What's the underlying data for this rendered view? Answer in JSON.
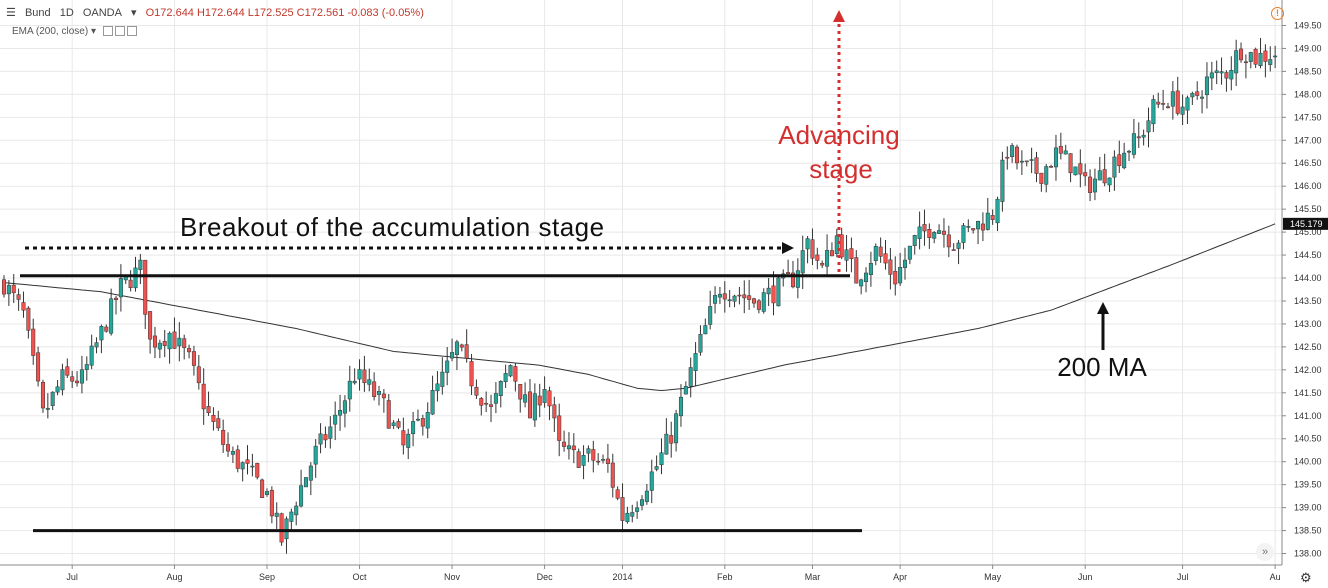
{
  "header": {
    "symbol": "Bund",
    "interval": "1D",
    "source": "OANDA",
    "ohlc": "O172.644  H172.644  L172.525  C172.561  -0.083 (-0.05%)"
  },
  "indicator_label": "EMA (200, close)",
  "colors": {
    "up": "#26a69a",
    "down": "#ef5350",
    "grid": "#e8e8e8",
    "axis": "#888888",
    "annotation_red": "#d32f2f",
    "annotation_black": "#111111"
  },
  "chart_data": {
    "type": "candlestick",
    "ylim": [
      137.75,
      149.75
    ],
    "y_ticks": [
      "149.50",
      "149.00",
      "148.50",
      "148.00",
      "147.50",
      "147.00",
      "146.50",
      "146.00",
      "145.50",
      "145.00",
      "144.50",
      "144.00",
      "143.50",
      "143.00",
      "142.50",
      "142.00",
      "141.50",
      "141.00",
      "140.50",
      "140.00",
      "139.50",
      "139.00",
      "138.50",
      "138.00"
    ],
    "x_ticks": [
      {
        "label": "Jul",
        "i": 14
      },
      {
        "label": "Aug",
        "i": 35
      },
      {
        "label": "Sep",
        "i": 54
      },
      {
        "label": "Oct",
        "i": 73
      },
      {
        "label": "Nov",
        "i": 92
      },
      {
        "label": "Dec",
        "i": 111
      },
      {
        "label": "2014",
        "i": 127
      },
      {
        "label": "Feb",
        "i": 148
      },
      {
        "label": "Mar",
        "i": 166
      },
      {
        "label": "Apr",
        "i": 184
      },
      {
        "label": "May",
        "i": 203
      },
      {
        "label": "Jun",
        "i": 222
      },
      {
        "label": "Jul",
        "i": 242
      },
      {
        "label": "Au",
        "i": 261
      }
    ],
    "n_bars": 262,
    "close_anchors": [
      [
        0,
        143.9
      ],
      [
        4,
        143.2
      ],
      [
        8,
        141.0
      ],
      [
        12,
        141.8
      ],
      [
        16,
        141.8
      ],
      [
        20,
        142.8
      ],
      [
        24,
        143.8
      ],
      [
        28,
        144.2
      ],
      [
        30,
        142.6
      ],
      [
        34,
        142.8
      ],
      [
        38,
        142.2
      ],
      [
        42,
        141.0
      ],
      [
        46,
        140.2
      ],
      [
        50,
        139.8
      ],
      [
        54,
        139.3
      ],
      [
        57,
        138.3
      ],
      [
        60,
        139.2
      ],
      [
        64,
        140.2
      ],
      [
        68,
        140.9
      ],
      [
        72,
        141.9
      ],
      [
        75,
        141.6
      ],
      [
        78,
        141.2
      ],
      [
        82,
        140.3
      ],
      [
        86,
        141.0
      ],
      [
        90,
        141.8
      ],
      [
        93,
        142.5
      ],
      [
        96,
        141.8
      ],
      [
        100,
        141.1
      ],
      [
        104,
        142.1
      ],
      [
        108,
        141.0
      ],
      [
        111,
        141.7
      ],
      [
        114,
        140.3
      ],
      [
        117,
        140.1
      ],
      [
        120,
        140.1
      ],
      [
        124,
        139.9
      ],
      [
        127,
        138.8
      ],
      [
        130,
        139.2
      ],
      [
        134,
        139.9
      ],
      [
        137,
        140.6
      ],
      [
        140,
        141.6
      ],
      [
        143,
        142.6
      ],
      [
        147,
        143.8
      ],
      [
        150,
        143.7
      ],
      [
        154,
        143.5
      ],
      [
        158,
        143.7
      ],
      [
        162,
        144.0
      ],
      [
        165,
        144.8
      ],
      [
        168,
        144.2
      ],
      [
        171,
        144.9
      ],
      [
        175,
        144.0
      ],
      [
        179,
        144.6
      ],
      [
        183,
        144.0
      ],
      [
        187,
        144.8
      ],
      [
        191,
        145.2
      ],
      [
        195,
        144.8
      ],
      [
        199,
        145.1
      ],
      [
        203,
        145.4
      ],
      [
        206,
        146.8
      ],
      [
        209,
        146.4
      ],
      [
        213,
        146.3
      ],
      [
        216,
        146.7
      ],
      [
        219,
        146.5
      ],
      [
        222,
        146.0
      ],
      [
        226,
        146.3
      ],
      [
        230,
        146.8
      ],
      [
        233,
        147.0
      ],
      [
        236,
        147.7
      ],
      [
        239,
        147.9
      ],
      [
        243,
        147.7
      ],
      [
        247,
        148.3
      ],
      [
        251,
        148.5
      ],
      [
        254,
        149.0
      ],
      [
        257,
        148.8
      ],
      [
        261,
        148.9
      ]
    ],
    "ema_anchors": [
      [
        0,
        143.9
      ],
      [
        20,
        143.7
      ],
      [
        40,
        143.3
      ],
      [
        60,
        142.9
      ],
      [
        80,
        142.4
      ],
      [
        100,
        142.2
      ],
      [
        110,
        142.1
      ],
      [
        120,
        141.9
      ],
      [
        130,
        141.6
      ],
      [
        135,
        141.55
      ],
      [
        140,
        141.6
      ],
      [
        160,
        142.1
      ],
      [
        180,
        142.5
      ],
      [
        200,
        142.9
      ],
      [
        215,
        143.3
      ],
      [
        225,
        143.7
      ],
      [
        240,
        144.3
      ],
      [
        261,
        145.18
      ]
    ],
    "ema_last": "145.179",
    "annotations": {
      "breakout_text": "Breakout of the accumulation stage",
      "advancing_text_1": "Advancing",
      "advancing_text_2": "stage",
      "ma_text": "200 MA",
      "resistance_level": 144.05,
      "support_level": 138.5
    }
  }
}
